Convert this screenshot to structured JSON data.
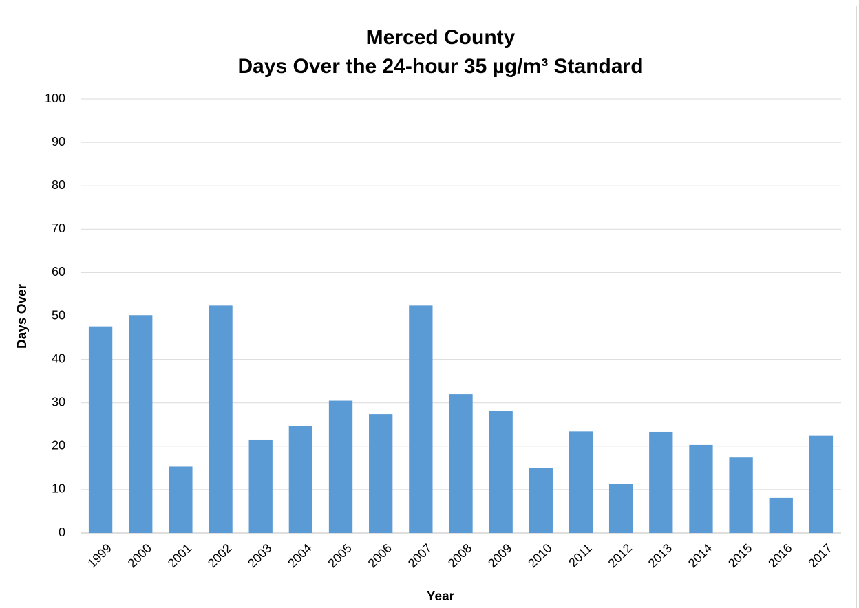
{
  "chart_data": {
    "type": "bar",
    "title": "Merced County",
    "subtitle": "Days Over the 24-hour 35 µg/m³ Standard",
    "x_label": "Year",
    "y_label": "Days Over",
    "categories": [
      "1999",
      "2000",
      "2001",
      "2002",
      "2003",
      "2004",
      "2005",
      "2006",
      "2007",
      "2008",
      "2009",
      "2010",
      "2011",
      "2012",
      "2013",
      "2014",
      "2015",
      "2016",
      "2017"
    ],
    "values": [
      47.6,
      50.2,
      15.3,
      52.4,
      21.4,
      24.6,
      30.5,
      27.4,
      52.4,
      32,
      28.2,
      14.9,
      23.4,
      11.4,
      23.3,
      20.3,
      17.4,
      8.1,
      22.4
    ],
    "color": "#5b9bd5",
    "ylim": [
      0,
      100
    ],
    "yticks": [
      0,
      10,
      20,
      30,
      40,
      50,
      60,
      70,
      80,
      90,
      100
    ],
    "grid": true
  }
}
